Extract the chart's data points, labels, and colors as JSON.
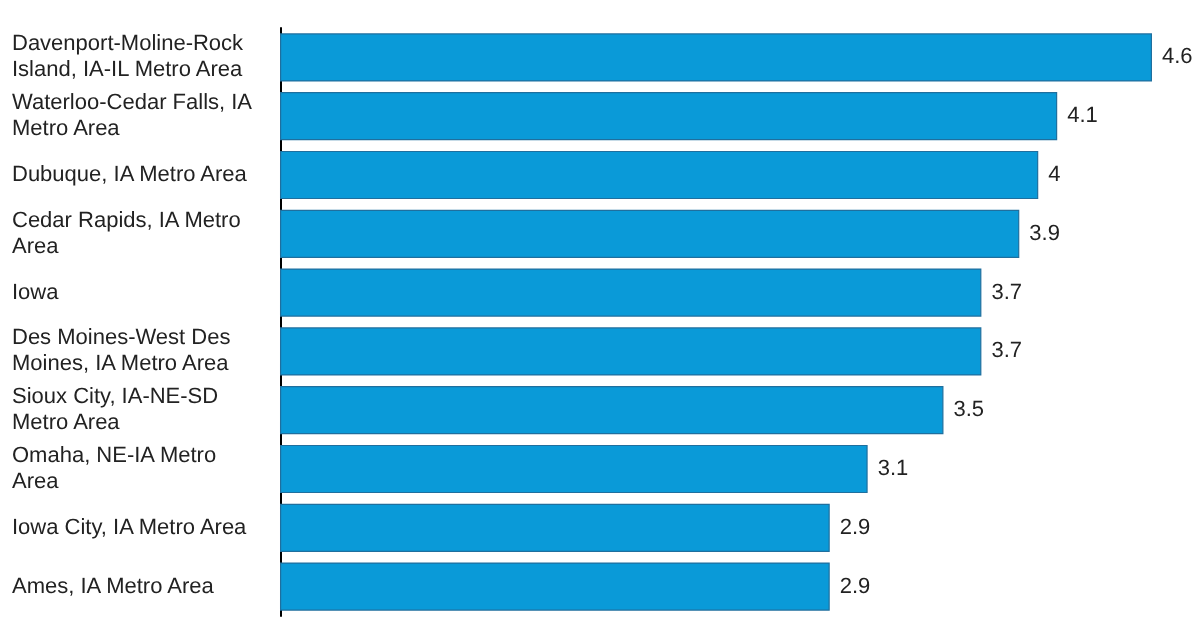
{
  "chart_data": {
    "type": "bar",
    "orientation": "horizontal",
    "categories": [
      "Davenport-Moline-Rock Island, IA-IL Metro Area",
      "Waterloo-Cedar Falls, IA Metro Area",
      "Dubuque, IA Metro Area",
      "Cedar Rapids, IA Metro Area",
      "Iowa",
      "Des Moines-West Des Moines, IA Metro Area",
      "Sioux City, IA-NE-SD Metro Area",
      "Omaha, NE-IA Metro Area",
      "Iowa City, IA Metro Area",
      "Ames, IA Metro Area"
    ],
    "values": [
      4.6,
      4.1,
      4,
      3.9,
      3.7,
      3.7,
      3.5,
      3.1,
      2.9,
      2.9
    ],
    "color": "#0a9ad8",
    "data_labels": true
  }
}
